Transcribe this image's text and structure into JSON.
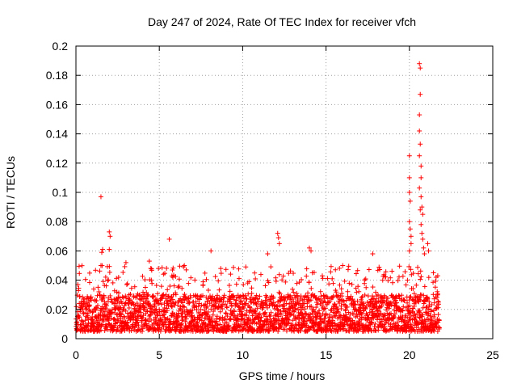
{
  "chart_data": {
    "type": "scatter",
    "title": "Day 247 of 2024, Rate Of TEC Index for receiver vfch",
    "xlabel": "GPS time / hours",
    "ylabel": "ROTI / TECUs",
    "xlim": [
      0,
      25
    ],
    "ylim": [
      0,
      0.2
    ],
    "xticks": [
      0,
      5,
      10,
      15,
      20,
      25
    ],
    "yticks": [
      0,
      0.02,
      0.04,
      0.06,
      0.08,
      0.1,
      0.12,
      0.14,
      0.16,
      0.18,
      0.2
    ],
    "grid": true,
    "marker": "+",
    "marker_color": "#ff0000",
    "series": [
      {
        "name": "ROTI",
        "x_range": [
          0,
          21.8
        ],
        "baseline_band": [
          0.005,
          0.03
        ],
        "notable_points": [
          [
            1.5,
            0.097
          ],
          [
            1.6,
            0.061
          ],
          [
            1.55,
            0.059
          ],
          [
            1.5,
            0.05
          ],
          [
            2.0,
            0.073
          ],
          [
            2.05,
            0.07
          ],
          [
            2.0,
            0.061
          ],
          [
            3.0,
            0.052
          ],
          [
            4.4,
            0.053
          ],
          [
            5.6,
            0.068
          ],
          [
            8.1,
            0.06
          ],
          [
            6.5,
            0.05
          ],
          [
            12.1,
            0.072
          ],
          [
            12.15,
            0.069
          ],
          [
            12.2,
            0.065
          ],
          [
            14.0,
            0.062
          ],
          [
            14.1,
            0.06
          ],
          [
            11.5,
            0.058
          ],
          [
            16.0,
            0.05
          ],
          [
            17.8,
            0.058
          ],
          [
            20.0,
            0.125
          ],
          [
            20.0,
            0.11
          ],
          [
            20.0,
            0.1
          ],
          [
            20.05,
            0.094
          ],
          [
            20.0,
            0.08
          ],
          [
            20.05,
            0.075
          ],
          [
            20.1,
            0.07
          ],
          [
            20.1,
            0.065
          ],
          [
            20.0,
            0.06
          ],
          [
            20.6,
            0.188
          ],
          [
            20.65,
            0.185
          ],
          [
            20.65,
            0.167
          ],
          [
            20.6,
            0.153
          ],
          [
            20.6,
            0.142
          ],
          [
            20.65,
            0.133
          ],
          [
            20.6,
            0.125
          ],
          [
            20.7,
            0.118
          ],
          [
            20.7,
            0.11
          ],
          [
            20.6,
            0.103
          ],
          [
            20.7,
            0.097
          ],
          [
            20.75,
            0.09
          ],
          [
            20.65,
            0.088
          ],
          [
            20.8,
            0.085
          ],
          [
            20.7,
            0.078
          ],
          [
            20.75,
            0.072
          ],
          [
            20.8,
            0.068
          ],
          [
            20.85,
            0.062
          ],
          [
            20.9,
            0.058
          ],
          [
            21.1,
            0.065
          ],
          [
            21.15,
            0.06
          ],
          [
            21.6,
            0.042
          ],
          [
            21.7,
            0.043
          ]
        ]
      }
    ]
  }
}
